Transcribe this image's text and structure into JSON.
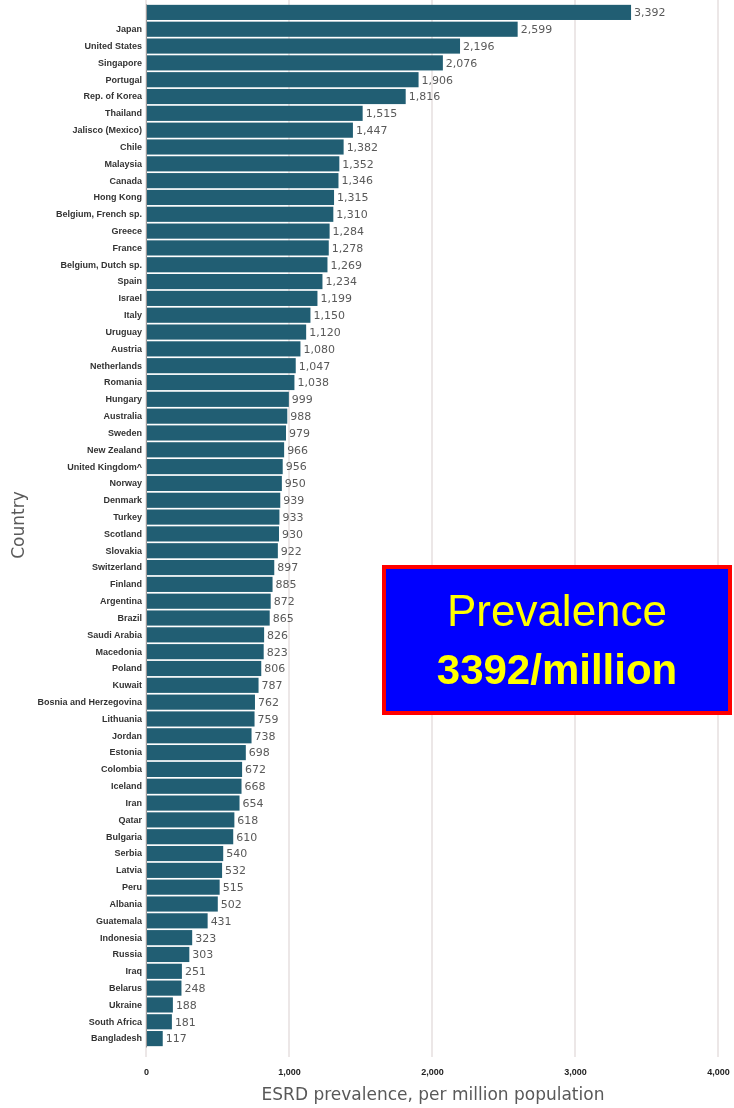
{
  "chart_data": {
    "type": "bar",
    "orientation": "horizontal",
    "xlabel": "ESRD prevalence, per million population",
    "ylabel": "Country",
    "categories": [
      null,
      "Japan",
      "United States",
      "Singapore",
      "Portugal",
      "Rep. of Korea",
      "Thailand",
      "Jalisco (Mexico)",
      "Chile",
      "Malaysia",
      "Canada",
      "Hong Kong",
      "Belgium, French sp.",
      "Greece",
      "France",
      "Belgium, Dutch sp.",
      "Spain",
      "Israel",
      "Italy",
      "Uruguay",
      "Austria",
      "Netherlands",
      "Romania",
      "Hungary",
      "Australia",
      "Sweden",
      "New Zealand",
      "United Kingdom^",
      "Norway",
      "Denmark",
      "Turkey",
      "Scotland",
      "Slovakia",
      "Switzerland",
      "Finland",
      "Argentina",
      "Brazil",
      "Saudi Arabia",
      "Macedonia",
      "Poland",
      "Kuwait",
      "Bosnia and Herzegovina",
      "Lithuania",
      "Jordan",
      "Estonia",
      "Colombia",
      "Iceland",
      "Iran",
      "Qatar",
      "Bulgaria",
      "Serbia",
      "Latvia",
      "Peru",
      "Albania",
      "Guatemala",
      "Indonesia",
      "Russia",
      "Iraq",
      "Belarus",
      "Ukraine",
      "South Africa",
      "Bangladesh"
    ],
    "values": [
      3392,
      2599,
      2196,
      2076,
      1906,
      1816,
      1515,
      1447,
      1382,
      1352,
      1346,
      1315,
      1310,
      1284,
      1278,
      1269,
      1234,
      1199,
      1150,
      1120,
      1080,
      1047,
      1038,
      999,
      988,
      979,
      966,
      956,
      950,
      939,
      933,
      930,
      922,
      897,
      885,
      872,
      865,
      826,
      823,
      806,
      787,
      762,
      759,
      738,
      698,
      672,
      668,
      654,
      618,
      610,
      540,
      532,
      515,
      502,
      431,
      323,
      303,
      251,
      248,
      188,
      181,
      117
    ],
    "value_labels": [
      "3,392",
      "2,599",
      "2,196",
      "2,076",
      "1,906",
      "1,816",
      "1,515",
      "1,447",
      "1,382",
      "1,352",
      "1,346",
      "1,315",
      "1,310",
      "1,284",
      "1,278",
      "1,269",
      "1,234",
      "1,199",
      "1,150",
      "1,120",
      "1,080",
      "1,047",
      "1,038",
      "999",
      "988",
      "979",
      "966",
      "956",
      "950",
      "939",
      "933",
      "930",
      "922",
      "897",
      "885",
      "872",
      "865",
      "826",
      "823",
      "806",
      "787",
      "762",
      "759",
      "738",
      "698",
      "672",
      "668",
      "654",
      "618",
      "610",
      "540",
      "532",
      "515",
      "502",
      "431",
      "323",
      "303",
      "251",
      "248",
      "188",
      "181",
      "117"
    ],
    "color": "#215e73",
    "xlim": [
      0,
      4000
    ],
    "xticks": [
      {
        "value": 0,
        "label": "0"
      },
      {
        "value": 1000,
        "label": "1,000"
      },
      {
        "value": 2000,
        "label": "2,000"
      },
      {
        "value": 3000,
        "label": "3,000"
      },
      {
        "value": 4000,
        "label": "4,000"
      }
    ],
    "grid": "x",
    "annotations": [
      "Prevalence",
      "3392/million"
    ]
  }
}
